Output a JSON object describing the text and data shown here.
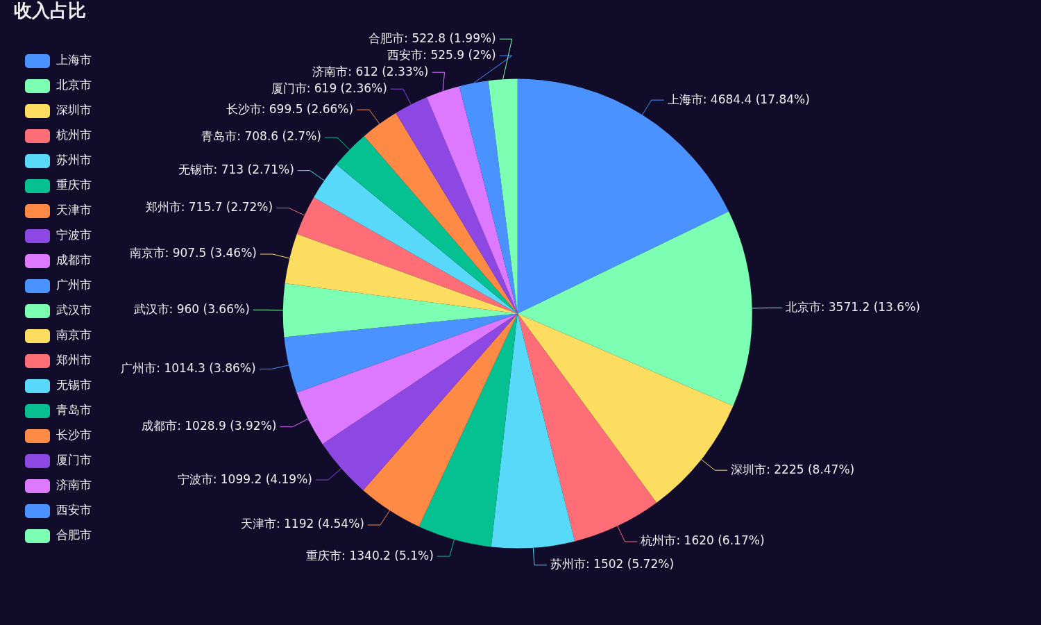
{
  "chart_data": {
    "type": "pie",
    "title": "收入占比",
    "legend": "left",
    "categories": [
      "上海市",
      "北京市",
      "深圳市",
      "杭州市",
      "苏州市",
      "重庆市",
      "天津市",
      "宁波市",
      "成都市",
      "广州市",
      "武汉市",
      "南京市",
      "郑州市",
      "无锡市",
      "青岛市",
      "长沙市",
      "厦门市",
      "济南市",
      "西安市",
      "合肥市"
    ],
    "values": [
      4684.4,
      3571.2,
      2225,
      1620,
      1502,
      1340.2,
      1192,
      1099.2,
      1028.9,
      1014.3,
      960,
      907.5,
      715.7,
      713,
      708.6,
      699.5,
      619,
      612,
      525.9,
      522.8
    ],
    "colors": [
      "#4992ff",
      "#7cffb2",
      "#fddd60",
      "#ff6e76",
      "#58d9f9",
      "#05c091",
      "#ff8a45",
      "#8d48e3",
      "#dd79ff",
      "#4992ff",
      "#7cffb2",
      "#fddd60",
      "#ff6e76",
      "#58d9f9",
      "#05c091",
      "#ff8a45",
      "#8d48e3",
      "#dd79ff",
      "#4992ff",
      "#7cffb2"
    ],
    "value_labels": [
      "上海市: 4684.4 (17.84%)",
      "北京市: 3571.2 (13.6%)",
      "深圳市: 2225 (8.47%)",
      "杭州市: 1620 (6.17%)",
      "苏州市: 1502 (5.72%)",
      "重庆市: 1340.2 (5.1%)",
      "天津市: 1192 (4.54%)",
      "宁波市: 1099.2 (4.19%)",
      "成都市: 1028.9 (3.92%)",
      "广州市: 1014.3 (3.86%)",
      "武汉市: 960 (3.66%)",
      "南京市: 907.5 (3.46%)",
      "郑州市: 715.7 (2.72%)",
      "无锡市: 713 (2.71%)",
      "青岛市: 708.6 (2.7%)",
      "长沙市: 699.5 (2.66%)",
      "厦门市: 619 (2.36%)",
      "济南市: 612 (2.33%)",
      "西安市: 525.9 (2%)",
      "合肥市: 522.8 (1.99%)"
    ]
  }
}
